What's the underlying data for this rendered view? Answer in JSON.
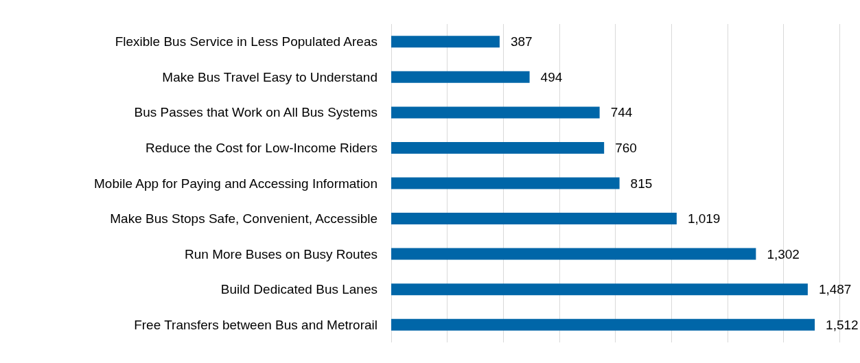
{
  "chart_data": {
    "type": "bar",
    "orientation": "horizontal",
    "categories": [
      "Flexible Bus Service in Less Populated Areas",
      "Make Bus Travel Easy to Understand",
      "Bus Passes that Work on All Bus Systems",
      "Reduce the Cost for Low-Income Riders",
      "Mobile App for Paying and Accessing Information",
      "Make Bus Stops Safe, Convenient, Accessible",
      "Run More Buses on Busy Routes",
      "Build Dedicated Bus Lanes",
      "Free Transfers between Bus and Metrorail"
    ],
    "values": [
      387,
      494,
      744,
      760,
      815,
      1019,
      1302,
      1487,
      1512
    ],
    "value_labels": [
      "387",
      "494",
      "744",
      "760",
      "815",
      "1,019",
      "1,302",
      "1,487",
      "1,512"
    ],
    "color": "#0066a8",
    "xlim": [
      0,
      1600
    ],
    "xticks": [
      {
        "value": 0,
        "label": null
      },
      {
        "value": 200,
        "label": null
      },
      {
        "value": 400,
        "label": null
      },
      {
        "value": 600,
        "label": null
      },
      {
        "value": 800,
        "label": null
      },
      {
        "value": 1000,
        "label": null
      },
      {
        "value": 1200,
        "label": null
      },
      {
        "value": 1400,
        "label": null
      },
      {
        "value": 1600,
        "label": null
      }
    ],
    "grid": "x"
  }
}
